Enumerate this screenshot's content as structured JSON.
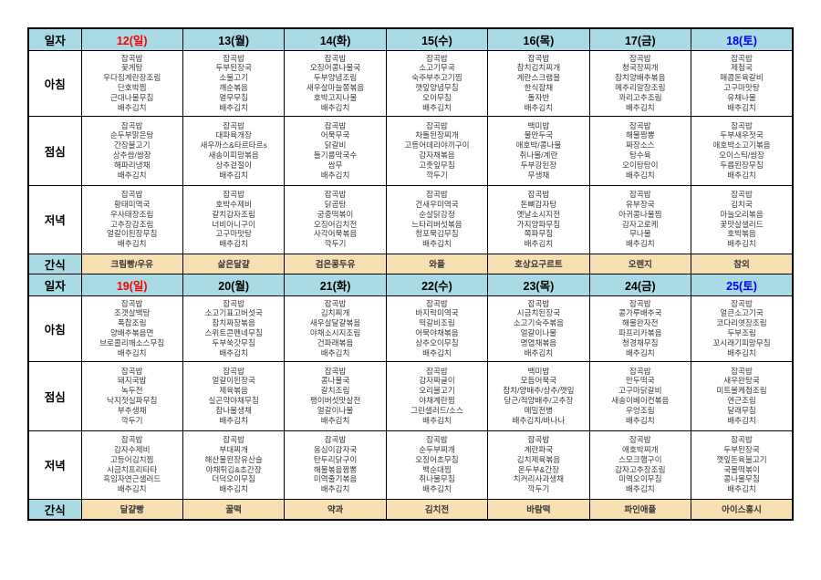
{
  "colors": {
    "header_bg": "#aadbe4",
    "snack_bg": "#f6dfb0",
    "border": "#000000",
    "menu_text": "#3a3a3a",
    "sunday": "#ff0000",
    "saturday": "#0000ff"
  },
  "labels": {
    "date": "일자",
    "breakfast": "아침",
    "lunch": "점심",
    "dinner": "저녁",
    "snack": "간식"
  },
  "weeks": [
    {
      "dates": [
        {
          "label": "12(일)",
          "day": "sunday"
        },
        {
          "label": "13(월)",
          "day": "weekday"
        },
        {
          "label": "14(화)",
          "day": "weekday"
        },
        {
          "label": "15(수)",
          "day": "weekday"
        },
        {
          "label": "16(목)",
          "day": "weekday"
        },
        {
          "label": "17(금)",
          "day": "weekday"
        },
        {
          "label": "18(토)",
          "day": "saturday"
        }
      ],
      "breakfast": [
        [
          "잡곡밥",
          "꽃게탕",
          "우다짐계란장조림",
          "단호박찜",
          "근대나물무침",
          "배추김치"
        ],
        [
          "잡곡밥",
          "두부된장국",
          "소불고기",
          "깨순볶음",
          "열무무침",
          "배추김치"
        ],
        [
          "잡곡밥",
          "오징어콩나물국",
          "두부양념조림",
          "새우살마늘쫑볶음",
          "호박고지나물",
          "배추김치"
        ],
        [
          "잡곡밥",
          "소고기무국",
          "숙주부추고기찜",
          "깻잎양념무침",
          "오이무침",
          "배추김치"
        ],
        [
          "잡곡밥",
          "참치김치찌개",
          "계란스크램블",
          "한식잡채",
          "돌자반",
          "배추김치"
        ],
        [
          "잡곡밥",
          "청국장찌개",
          "참치양배추볶음",
          "메추리알장조림",
          "꽈리고추조림",
          "배추김치"
        ],
        [
          "잡곡밥",
          "제첩국",
          "매콤돈육갈비",
          "고구마맛탕",
          "유채나물",
          "배추김치"
        ]
      ],
      "lunch": [
        [
          "잡곡밥",
          "순두부맑은탕",
          "간장불고기",
          "상추쌈/쌈장",
          "해파리냉채",
          "배추김치"
        ],
        [
          "잡곡밥",
          "대파육개장",
          "새우까스&타르타르s",
          "새송이피망볶음",
          "상추겉절이",
          "배추김치"
        ],
        [
          "잡곡밥",
          "어묵무국",
          "닭갈비",
          "들기름막국수",
          "쌈무",
          "배추김치"
        ],
        [
          "잡곡밥",
          "차돌된장찌개",
          "고등어데리야끼구이",
          "감자채볶음",
          "고춧잎무침",
          "깍두기"
        ],
        [
          "백미밥",
          "물만두국",
          "애호박/콩나물",
          "취나물/계란",
          "두부강된장",
          "무생채"
        ],
        [
          "잡곡밥",
          "해물짬뽕",
          "짜장소스",
          "탕수육",
          "오이탕탕이",
          "배추김치"
        ],
        [
          "잡곡밥",
          "두부새우젓국",
          "애호박소고기볶음",
          "오이스틱/쌈장",
          "두릅된장무침",
          "배추김치"
        ]
      ],
      "dinner": [
        [
          "잡곡밥",
          "황태미역국",
          "우사태장조림",
          "고추장감조림",
          "얼갈이된장무침",
          "배추김치"
        ],
        [
          "잡곡밥",
          "호박수제비",
          "갈치감자조림",
          "너비아니구이",
          "고구마맛탕",
          "배추김치"
        ],
        [
          "잡곡밥",
          "닭곰탕",
          "궁중떡볶이",
          "오징어김치전",
          "사각어묵볶음",
          "깍두기"
        ],
        [
          "잡곡밥",
          "건새우미역국",
          "순살닭강정",
          "느타리버섯볶음",
          "청포묵김무침",
          "배추김치"
        ],
        [
          "잡곡밥",
          "돈뼈감자탕",
          "옛날소시지전",
          "가지양파무침",
          "쪽파무침",
          "배추김치"
        ],
        [
          "잡곡밥",
          "유부장국",
          "아귀콩나물찜",
          "감자고로케",
          "무나물",
          "배추김치"
        ],
        [
          "잡곡밥",
          "김치국",
          "마늘오리볶음",
          "꽃맛살샐러드",
          "호박볶음",
          "배추김치"
        ]
      ],
      "snack": [
        "크림빵/우유",
        "삶은달걀",
        "검은콩두유",
        "와플",
        "호상요구르트",
        "오렌지",
        "참외"
      ]
    },
    {
      "dates": [
        {
          "label": "19(일)",
          "day": "sunday"
        },
        {
          "label": "20(월)",
          "day": "weekday"
        },
        {
          "label": "21(화)",
          "day": "weekday"
        },
        {
          "label": "22(수)",
          "day": "weekday"
        },
        {
          "label": "23(목)",
          "day": "weekday"
        },
        {
          "label": "24(금)",
          "day": "weekday"
        },
        {
          "label": "25(토)",
          "day": "saturday"
        }
      ],
      "breakfast": [
        [
          "잡곡밥",
          "조갯살백탕",
          "폭찹조림",
          "양배추볶음면",
          "브로콜리깨소스무침",
          "배추김치"
        ],
        [
          "잡곡밥",
          "소고기표고버섯국",
          "참치짜장볶음",
          "스위트콘펜네무침",
          "두부쑥갓무침",
          "배추김치"
        ],
        [
          "잡곡밥",
          "김치찌개",
          "새우살달걀볶음",
          "야채소시지조림",
          "건파래볶음",
          "배추김치"
        ],
        [
          "잡곡밥",
          "바지락미역국",
          "떡갈비조림",
          "어묵야채볶음",
          "상추오이무침",
          "배추김치"
        ],
        [
          "잡곡밥",
          "시금치된장국",
          "소고기숙주볶음",
          "얼갈이나물",
          "명엽채볶음",
          "배추김치"
        ],
        [
          "잡곡밥",
          "콩가루배추국",
          "해물완자전",
          "파프리카볶음",
          "청경채무침",
          "배추김치"
        ],
        [
          "잡곡밥",
          "얼큰소고기국",
          "코다리엿장조림",
          "두부조림",
          "꼬시래기피망무침",
          "배추김치"
        ]
      ],
      "lunch": [
        [
          "잡곡밥",
          "돼지국밥",
          "녹두전",
          "낙지젓실파무침",
          "부추생채",
          "깍두기"
        ],
        [
          "잡곡밥",
          "얼갈이된장국",
          "제육볶음",
          "실곤약야채무침",
          "참나물생채",
          "배추김치"
        ],
        [
          "잡곡밥",
          "콩나물국",
          "갈치조림",
          "팽이버섯맛살전",
          "얼갈이나물",
          "배추김치"
        ],
        [
          "잡곡밥",
          "감자짜글이",
          "오리불고기",
          "야채계란찜",
          "그린샐러드/소스",
          "배추김치"
        ],
        [
          "백미밥",
          "모듬어묵국",
          "참치/양배추/상추/깻잎",
          "당근/적양배추/고추장",
          "메밀전병",
          "배추김치/바나나"
        ],
        [
          "잡곡밥",
          "만두떡국",
          "고구마닭갈비",
          "새송이베이컨볶음",
          "우엉조림",
          "배추김치"
        ],
        [
          "잡곡밥",
          "새우완탕국",
          "미트볼케첩조림",
          "연근조림",
          "달래무침",
          "배추김치"
        ]
      ],
      "dinner": [
        [
          "잡곡밥",
          "감자수제비",
          "고등어김치찜",
          "시금치프리타타",
          "흑임자연근샐러드",
          "배추김치"
        ],
        [
          "잡곡밥",
          "부대찌개",
          "해산물된장유산슬",
          "야채튀김&초간장",
          "더덕오이무침",
          "배추김치"
        ],
        [
          "잡곡밥",
          "옹심이감자국",
          "탄두리닭구이",
          "해물볶음짬뽕",
          "미역줄기볶음",
          "배추김치"
        ],
        [
          "잡곡밥",
          "순두부찌개",
          "오징어초무침",
          "백순대찜",
          "취나물무침",
          "배추김치"
        ],
        [
          "잡곡밥",
          "계란파국",
          "김치제육볶음",
          "온두부&간장",
          "치커리사과생채",
          "깍두기"
        ],
        [
          "잡곡밥",
          "애호박찌개",
          "스모크햄구이",
          "감자고추장조림",
          "미역오이무침",
          "배추김치"
        ],
        [
          "잡곡밥",
          "두부된장국",
          "깻잎돈육불고기",
          "국물떡볶이",
          "콩나물무침",
          "배추김치"
        ]
      ],
      "snack": [
        "달걀빵",
        "꿀떡",
        "약과",
        "김치전",
        "바람떡",
        "파인애플",
        "아이스홍시"
      ]
    }
  ]
}
